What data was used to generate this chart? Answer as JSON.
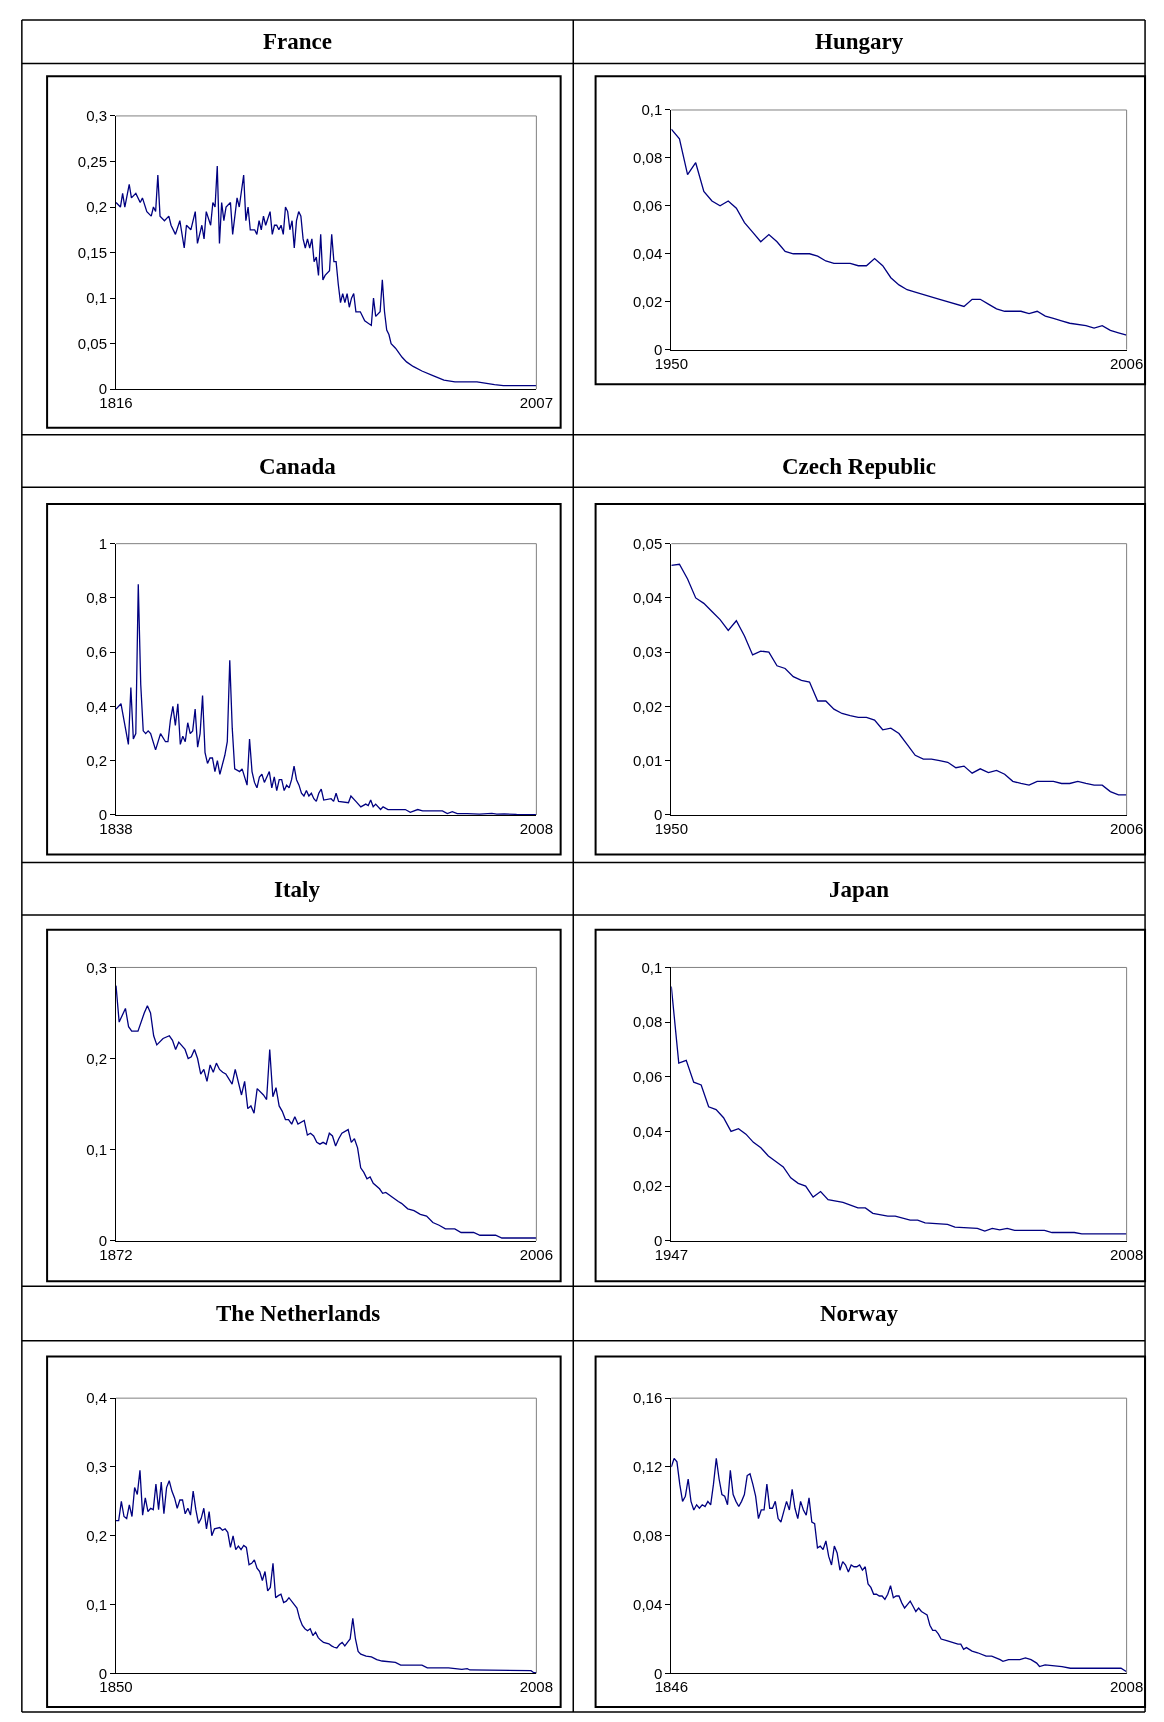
{
  "chart_data": [
    {
      "type": "line",
      "title": "France",
      "color": "#000080",
      "x": [
        1816,
        1818,
        1819,
        1820,
        1822,
        1823,
        1825,
        1827,
        1828,
        1830,
        1832,
        1833,
        1834,
        1835,
        1836,
        1838,
        1840,
        1841,
        1843,
        1845,
        1847,
        1848,
        1850,
        1852,
        1853,
        1855,
        1856,
        1857,
        1859,
        1860,
        1861,
        1862,
        1863,
        1864,
        1865,
        1866,
        1868,
        1869,
        1871,
        1872,
        1874,
        1875,
        1876,
        1877,
        1879,
        1880,
        1881,
        1882,
        1883,
        1884,
        1886,
        1887,
        1888,
        1889,
        1890,
        1891,
        1892,
        1893,
        1894,
        1895,
        1896,
        1897,
        1898,
        1899,
        1900,
        1901,
        1902,
        1903,
        1904,
        1905,
        1906,
        1907,
        1908,
        1909,
        1910,
        1911,
        1913,
        1914,
        1915,
        1916,
        1917,
        1918,
        1919,
        1920,
        1921,
        1922,
        1923,
        1924,
        1925,
        1927,
        1929,
        1932,
        1933,
        1934,
        1936,
        1937,
        1938,
        1939,
        1940,
        1941,
        1943,
        1946,
        1948,
        1951,
        1955,
        1960,
        1965,
        1970,
        1980,
        1988,
        1992,
        2007
      ],
      "values": [
        0.205,
        0.2,
        0.215,
        0.2,
        0.225,
        0.21,
        0.215,
        0.205,
        0.21,
        0.195,
        0.19,
        0.2,
        0.195,
        0.235,
        0.19,
        0.185,
        0.19,
        0.18,
        0.17,
        0.185,
        0.155,
        0.18,
        0.175,
        0.195,
        0.16,
        0.18,
        0.165,
        0.195,
        0.18,
        0.205,
        0.2,
        0.245,
        0.16,
        0.205,
        0.185,
        0.2,
        0.205,
        0.17,
        0.21,
        0.2,
        0.235,
        0.185,
        0.2,
        0.175,
        0.175,
        0.17,
        0.185,
        0.175,
        0.19,
        0.18,
        0.195,
        0.17,
        0.18,
        0.18,
        0.175,
        0.18,
        0.17,
        0.2,
        0.195,
        0.175,
        0.185,
        0.155,
        0.185,
        0.195,
        0.19,
        0.165,
        0.155,
        0.165,
        0.155,
        0.165,
        0.14,
        0.145,
        0.125,
        0.17,
        0.12,
        0.125,
        0.13,
        0.17,
        0.14,
        0.14,
        0.115,
        0.095,
        0.105,
        0.095,
        0.105,
        0.09,
        0.1,
        0.105,
        0.085,
        0.085,
        0.075,
        0.07,
        0.1,
        0.08,
        0.085,
        0.12,
        0.085,
        0.065,
        0.06,
        0.05,
        0.045,
        0.035,
        0.03,
        0.025,
        0.02,
        0.015,
        0.01,
        0.008,
        0.008,
        0.005,
        0.004,
        0.004
      ],
      "xlim": [
        1816,
        2007
      ],
      "xticks": [
        1816,
        2007
      ],
      "ylim": [
        0,
        0.3
      ],
      "yticks": [
        0,
        {
          "value": 0.05,
          "label": "0,05"
        },
        {
          "value": 0.1,
          "label": "0,1"
        },
        {
          "value": 0.15,
          "label": "0,15"
        },
        {
          "value": 0.2,
          "label": "0,2"
        },
        {
          "value": 0.25,
          "label": "0,25"
        },
        {
          "value": 0.3,
          "label": "0,3"
        }
      ]
    },
    {
      "type": "line",
      "title": "Hungary",
      "color": "#000080",
      "x": [
        1950,
        1951,
        1952,
        1953,
        1954,
        1955,
        1956,
        1957,
        1958,
        1959,
        1960,
        1961,
        1962,
        1963,
        1964,
        1965,
        1967,
        1968,
        1969,
        1970,
        1972,
        1973,
        1974,
        1975,
        1976,
        1977,
        1978,
        1979,
        1980,
        1983,
        1986,
        1987,
        1988,
        1989,
        1990,
        1991,
        1993,
        1994,
        1995,
        1996,
        1997,
        1998,
        1999,
        2001,
        2002,
        2003,
        2004,
        2005,
        2006
      ],
      "values": [
        0.092,
        0.088,
        0.073,
        0.078,
        0.066,
        0.062,
        0.06,
        0.062,
        0.059,
        0.053,
        0.049,
        0.045,
        0.048,
        0.045,
        0.041,
        0.04,
        0.04,
        0.039,
        0.037,
        0.036,
        0.036,
        0.035,
        0.035,
        0.038,
        0.035,
        0.03,
        0.027,
        0.025,
        0.024,
        0.021,
        0.018,
        0.021,
        0.021,
        0.019,
        0.017,
        0.016,
        0.016,
        0.015,
        0.016,
        0.014,
        0.013,
        0.012,
        0.011,
        0.01,
        0.009,
        0.01,
        0.008,
        0.007,
        0.006
      ],
      "xlim": [
        1950,
        2006
      ],
      "xticks": [
        1950,
        2006
      ],
      "ylim": [
        0,
        0.1
      ],
      "yticks": [
        0,
        {
          "value": 0.02,
          "label": "0,02"
        },
        {
          "value": 0.04,
          "label": "0,04"
        },
        {
          "value": 0.06,
          "label": "0,06"
        },
        {
          "value": 0.08,
          "label": "0,08"
        },
        {
          "value": 0.1,
          "label": "0,1"
        }
      ]
    },
    {
      "type": "line",
      "title": "Canada",
      "color": "#000080",
      "x": [
        1838,
        1840,
        1843,
        1844,
        1845,
        1846,
        1847,
        1848,
        1849,
        1850,
        1851,
        1852,
        1854,
        1856,
        1858,
        1859,
        1860,
        1861,
        1862,
        1863,
        1864,
        1865,
        1866,
        1867,
        1868,
        1869,
        1870,
        1871,
        1872,
        1873,
        1874,
        1875,
        1876,
        1877,
        1878,
        1879,
        1880,
        1882,
        1883,
        1884,
        1885,
        1886,
        1888,
        1889,
        1891,
        1892,
        1893,
        1894,
        1895,
        1896,
        1897,
        1898,
        1900,
        1901,
        1902,
        1903,
        1904,
        1905,
        1906,
        1907,
        1908,
        1909,
        1910,
        1911,
        1912,
        1913,
        1914,
        1915,
        1916,
        1917,
        1918,
        1919,
        1920,
        1921,
        1922,
        1925,
        1926,
        1927,
        1928,
        1932,
        1933,
        1935,
        1937,
        1939,
        1940,
        1941,
        1942,
        1943,
        1945,
        1946,
        1948,
        1955,
        1957,
        1960,
        1962,
        1970,
        1972,
        1974,
        1976,
        1980,
        1985,
        1990,
        1992,
        1995,
        2000,
        2008
      ],
      "values": [
        0.39,
        0.41,
        0.26,
        0.47,
        0.28,
        0.3,
        0.85,
        0.48,
        0.31,
        0.3,
        0.31,
        0.3,
        0.24,
        0.3,
        0.27,
        0.27,
        0.35,
        0.4,
        0.33,
        0.41,
        0.26,
        0.29,
        0.27,
        0.34,
        0.3,
        0.31,
        0.39,
        0.25,
        0.3,
        0.44,
        0.23,
        0.19,
        0.21,
        0.21,
        0.16,
        0.2,
        0.15,
        0.22,
        0.27,
        0.57,
        0.32,
        0.17,
        0.16,
        0.17,
        0.11,
        0.28,
        0.16,
        0.12,
        0.1,
        0.14,
        0.15,
        0.12,
        0.16,
        0.1,
        0.14,
        0.09,
        0.13,
        0.13,
        0.09,
        0.11,
        0.1,
        0.13,
        0.18,
        0.13,
        0.11,
        0.08,
        0.07,
        0.09,
        0.07,
        0.08,
        0.06,
        0.05,
        0.08,
        0.095,
        0.055,
        0.06,
        0.05,
        0.08,
        0.05,
        0.045,
        0.07,
        0.05,
        0.03,
        0.04,
        0.035,
        0.055,
        0.03,
        0.04,
        0.02,
        0.03,
        0.02,
        0.02,
        0.01,
        0.02,
        0.015,
        0.015,
        0.005,
        0.012,
        0.005,
        0.005,
        0.003,
        0.006,
        0.003,
        0.004,
        0.002,
        0.001
      ],
      "xlim": [
        1838,
        2008
      ],
      "xticks": [
        1838,
        2008
      ],
      "ylim": [
        0,
        1
      ],
      "yticks": [
        0,
        {
          "value": 0.2,
          "label": "0,2"
        },
        {
          "value": 0.4,
          "label": "0,4"
        },
        {
          "value": 0.6,
          "label": "0,6"
        },
        {
          "value": 0.8,
          "label": "0,8"
        },
        1
      ]
    },
    {
      "type": "line",
      "title": "Czech Republic",
      "color": "#000080",
      "x": [
        1950,
        1951,
        1952,
        1953,
        1954,
        1955,
        1956,
        1957,
        1958,
        1959,
        1960,
        1961,
        1962,
        1963,
        1964,
        1965,
        1966,
        1967,
        1968,
        1969,
        1970,
        1971,
        1972,
        1973,
        1974,
        1975,
        1976,
        1977,
        1978,
        1979,
        1980,
        1981,
        1982,
        1983,
        1984,
        1985,
        1986,
        1987,
        1988,
        1989,
        1990,
        1991,
        1992,
        1993,
        1994,
        1995,
        1996,
        1997,
        1998,
        1999,
        2000,
        2001,
        2002,
        2003,
        2004,
        2005,
        2006
      ],
      "values": [
        0.046,
        0.0462,
        0.0435,
        0.04,
        0.039,
        0.0375,
        0.036,
        0.034,
        0.0358,
        0.033,
        0.0295,
        0.0302,
        0.03,
        0.0275,
        0.027,
        0.0255,
        0.0248,
        0.0245,
        0.021,
        0.021,
        0.0195,
        0.0187,
        0.0183,
        0.018,
        0.018,
        0.0175,
        0.0157,
        0.016,
        0.015,
        0.013,
        0.011,
        0.0103,
        0.0103,
        0.01,
        0.0097,
        0.0087,
        0.009,
        0.0077,
        0.0085,
        0.0078,
        0.0082,
        0.0075,
        0.0062,
        0.0058,
        0.0055,
        0.0062,
        0.0062,
        0.0062,
        0.0058,
        0.0058,
        0.0062,
        0.0058,
        0.0055,
        0.0055,
        0.0043,
        0.0037,
        0.0037
      ],
      "xlim": [
        1950,
        2006
      ],
      "xticks": [
        1950,
        2006
      ],
      "ylim": [
        0,
        0.05
      ],
      "yticks": [
        0,
        {
          "value": 0.01,
          "label": "0,01"
        },
        {
          "value": 0.02,
          "label": "0,02"
        },
        {
          "value": 0.03,
          "label": "0,03"
        },
        {
          "value": 0.04,
          "label": "0,04"
        },
        {
          "value": 0.05,
          "label": "0,05"
        }
      ]
    },
    {
      "type": "line",
      "title": "Italy",
      "color": "#000080",
      "x": [
        1872,
        1873,
        1875,
        1876,
        1877,
        1879,
        1881,
        1882,
        1883,
        1884,
        1885,
        1887,
        1889,
        1890,
        1891,
        1892,
        1894,
        1895,
        1896,
        1897,
        1898,
        1899,
        1900,
        1901,
        1902,
        1903,
        1904,
        1905,
        1906,
        1907,
        1909,
        1910,
        1912,
        1913,
        1914,
        1915,
        1916,
        1917,
        1919,
        1920,
        1921,
        1922,
        1923,
        1924,
        1925,
        1926,
        1927,
        1928,
        1929,
        1930,
        1932,
        1933,
        1934,
        1935,
        1936,
        1937,
        1938,
        1939,
        1940,
        1941,
        1942,
        1943,
        1944,
        1946,
        1947,
        1948,
        1949,
        1950,
        1951,
        1952,
        1953,
        1954,
        1956,
        1957,
        1958,
        1960,
        1962,
        1963,
        1965,
        1967,
        1969,
        1971,
        1973,
        1975,
        1977,
        1980,
        1982,
        1986,
        1988,
        1993,
        1995,
        2006
      ],
      "values": [
        0.28,
        0.24,
        0.255,
        0.235,
        0.23,
        0.23,
        0.25,
        0.258,
        0.25,
        0.225,
        0.215,
        0.222,
        0.225,
        0.22,
        0.21,
        0.218,
        0.21,
        0.2,
        0.202,
        0.21,
        0.2,
        0.183,
        0.188,
        0.175,
        0.193,
        0.185,
        0.195,
        0.188,
        0.185,
        0.183,
        0.172,
        0.188,
        0.16,
        0.175,
        0.145,
        0.148,
        0.14,
        0.167,
        0.16,
        0.155,
        0.21,
        0.158,
        0.168,
        0.148,
        0.142,
        0.133,
        0.133,
        0.128,
        0.136,
        0.128,
        0.132,
        0.116,
        0.118,
        0.115,
        0.108,
        0.106,
        0.108,
        0.106,
        0.118,
        0.115,
        0.104,
        0.112,
        0.118,
        0.122,
        0.108,
        0.112,
        0.102,
        0.08,
        0.075,
        0.068,
        0.07,
        0.063,
        0.057,
        0.052,
        0.053,
        0.048,
        0.043,
        0.041,
        0.035,
        0.033,
        0.029,
        0.027,
        0.02,
        0.017,
        0.013,
        0.013,
        0.009,
        0.009,
        0.006,
        0.006,
        0.003,
        0.003
      ],
      "xlim": [
        1872,
        2006
      ],
      "xticks": [
        1872,
        2006
      ],
      "ylim": [
        0,
        0.3
      ],
      "yticks": [
        0,
        {
          "value": 0.1,
          "label": "0,1"
        },
        {
          "value": 0.2,
          "label": "0,2"
        },
        {
          "value": 0.3,
          "label": "0,3"
        }
      ]
    },
    {
      "type": "line",
      "title": "Japan",
      "color": "#000080",
      "x": [
        1947,
        1948,
        1949,
        1950,
        1951,
        1952,
        1953,
        1954,
        1955,
        1956,
        1957,
        1958,
        1959,
        1960,
        1961,
        1962,
        1963,
        1964,
        1965,
        1966,
        1967,
        1968,
        1970,
        1971,
        1972,
        1973,
        1974,
        1976,
        1977,
        1979,
        1980,
        1981,
        1984,
        1985,
        1988,
        1989,
        1990,
        1991,
        1992,
        1993,
        1997,
        1998,
        2001,
        2002,
        2008
      ],
      "values": [
        0.093,
        0.065,
        0.066,
        0.058,
        0.057,
        0.049,
        0.048,
        0.045,
        0.04,
        0.041,
        0.039,
        0.036,
        0.034,
        0.031,
        0.029,
        0.027,
        0.023,
        0.021,
        0.02,
        0.016,
        0.018,
        0.015,
        0.014,
        0.013,
        0.012,
        0.012,
        0.01,
        0.009,
        0.009,
        0.0075,
        0.0075,
        0.0065,
        0.006,
        0.005,
        0.0045,
        0.0035,
        0.0045,
        0.004,
        0.0045,
        0.0038,
        0.0038,
        0.003,
        0.003,
        0.0025,
        0.0025
      ],
      "xlim": [
        1947,
        2008
      ],
      "xticks": [
        1947,
        2008
      ],
      "ylim": [
        0,
        0.1
      ],
      "yticks": [
        0,
        {
          "value": 0.02,
          "label": "0,02"
        },
        {
          "value": 0.04,
          "label": "0,04"
        },
        {
          "value": 0.06,
          "label": "0,06"
        },
        {
          "value": 0.08,
          "label": "0,08"
        },
        {
          "value": 0.1,
          "label": "0,1"
        }
      ]
    },
    {
      "type": "line",
      "title": "The Netherlands",
      "color": "#000080",
      "x": [
        1850,
        1851,
        1852,
        1853,
        1854,
        1855,
        1856,
        1857,
        1858,
        1859,
        1860,
        1861,
        1862,
        1863,
        1864,
        1865,
        1866,
        1867,
        1868,
        1869,
        1870,
        1871,
        1872,
        1873,
        1874,
        1875,
        1876,
        1877,
        1878,
        1879,
        1880,
        1881,
        1882,
        1883,
        1884,
        1885,
        1886,
        1887,
        1889,
        1890,
        1891,
        1892,
        1893,
        1894,
        1895,
        1896,
        1897,
        1898,
        1899,
        1900,
        1901,
        1902,
        1903,
        1904,
        1905,
        1906,
        1907,
        1908,
        1909,
        1910,
        1911,
        1912,
        1913,
        1914,
        1915,
        1917,
        1918,
        1919,
        1920,
        1921,
        1922,
        1923,
        1924,
        1925,
        1926,
        1927,
        1928,
        1930,
        1931,
        1932,
        1933,
        1934,
        1935,
        1936,
        1937,
        1938,
        1939,
        1940,
        1941,
        1942,
        1944,
        1946,
        1948,
        1950,
        1955,
        1957,
        1965,
        1967,
        1975,
        1980,
        1982,
        1983,
        2006,
        2007,
        2008
      ],
      "values": [
        0.222,
        0.222,
        0.25,
        0.228,
        0.225,
        0.245,
        0.228,
        0.27,
        0.26,
        0.295,
        0.23,
        0.255,
        0.235,
        0.24,
        0.238,
        0.275,
        0.238,
        0.278,
        0.232,
        0.27,
        0.28,
        0.265,
        0.255,
        0.24,
        0.252,
        0.252,
        0.232,
        0.24,
        0.23,
        0.265,
        0.238,
        0.218,
        0.225,
        0.24,
        0.21,
        0.235,
        0.2,
        0.21,
        0.212,
        0.208,
        0.21,
        0.205,
        0.183,
        0.2,
        0.18,
        0.185,
        0.18,
        0.186,
        0.183,
        0.158,
        0.16,
        0.165,
        0.153,
        0.148,
        0.135,
        0.148,
        0.12,
        0.125,
        0.16,
        0.11,
        0.113,
        0.115,
        0.103,
        0.105,
        0.11,
        0.1,
        0.095,
        0.08,
        0.07,
        0.065,
        0.062,
        0.065,
        0.055,
        0.06,
        0.052,
        0.048,
        0.045,
        0.043,
        0.04,
        0.038,
        0.037,
        0.042,
        0.045,
        0.04,
        0.045,
        0.05,
        0.08,
        0.05,
        0.032,
        0.028,
        0.025,
        0.024,
        0.02,
        0.018,
        0.016,
        0.012,
        0.012,
        0.008,
        0.008,
        0.006,
        0.007,
        0.005,
        0.004,
        0.001,
        0.001
      ],
      "xlim": [
        1850,
        2008
      ],
      "xticks": [
        1850,
        2008
      ],
      "ylim": [
        0,
        0.4
      ],
      "yticks": [
        0,
        {
          "value": 0.1,
          "label": "0,1"
        },
        {
          "value": 0.2,
          "label": "0,2"
        },
        {
          "value": 0.3,
          "label": "0,3"
        },
        {
          "value": 0.4,
          "label": "0,4"
        }
      ]
    },
    {
      "type": "line",
      "title": "Norway",
      "color": "#000080",
      "x": [
        1846,
        1847,
        1848,
        1849,
        1850,
        1851,
        1852,
        1853,
        1854,
        1855,
        1856,
        1857,
        1858,
        1859,
        1860,
        1861,
        1862,
        1863,
        1864,
        1865,
        1866,
        1867,
        1868,
        1869,
        1870,
        1871,
        1872,
        1873,
        1874,
        1875,
        1876,
        1877,
        1878,
        1879,
        1880,
        1881,
        1882,
        1883,
        1884,
        1885,
        1886,
        1887,
        1888,
        1889,
        1890,
        1891,
        1892,
        1893,
        1894,
        1895,
        1896,
        1897,
        1898,
        1899,
        1900,
        1901,
        1902,
        1903,
        1904,
        1905,
        1906,
        1907,
        1908,
        1909,
        1910,
        1911,
        1912,
        1913,
        1914,
        1915,
        1916,
        1917,
        1918,
        1919,
        1920,
        1921,
        1922,
        1923,
        1924,
        1925,
        1926,
        1927,
        1928,
        1929,
        1930,
        1931,
        1932,
        1933,
        1934,
        1935,
        1936,
        1937,
        1938,
        1939,
        1940,
        1941,
        1942,
        1944,
        1946,
        1948,
        1949,
        1950,
        1951,
        1953,
        1955,
        1958,
        1960,
        1963,
        1964,
        1966,
        1970,
        1972,
        1974,
        1976,
        1977,
        1979,
        1985,
        1988,
        2006,
        2008
      ],
      "values": [
        0.12,
        0.125,
        0.123,
        0.11,
        0.1,
        0.103,
        0.113,
        0.1,
        0.095,
        0.098,
        0.096,
        0.098,
        0.097,
        0.1,
        0.098,
        0.11,
        0.125,
        0.113,
        0.104,
        0.103,
        0.098,
        0.118,
        0.104,
        0.1,
        0.097,
        0.1,
        0.104,
        0.115,
        0.116,
        0.11,
        0.103,
        0.09,
        0.095,
        0.095,
        0.11,
        0.096,
        0.096,
        0.1,
        0.09,
        0.088,
        0.094,
        0.1,
        0.095,
        0.107,
        0.096,
        0.09,
        0.1,
        0.095,
        0.092,
        0.102,
        0.088,
        0.087,
        0.073,
        0.074,
        0.072,
        0.077,
        0.068,
        0.063,
        0.074,
        0.07,
        0.06,
        0.065,
        0.063,
        0.059,
        0.063,
        0.062,
        0.062,
        0.063,
        0.06,
        0.062,
        0.052,
        0.05,
        0.046,
        0.046,
        0.045,
        0.045,
        0.043,
        0.046,
        0.051,
        0.044,
        0.045,
        0.045,
        0.041,
        0.038,
        0.04,
        0.042,
        0.039,
        0.036,
        0.038,
        0.036,
        0.035,
        0.034,
        0.028,
        0.025,
        0.025,
        0.023,
        0.02,
        0.019,
        0.018,
        0.017,
        0.017,
        0.014,
        0.015,
        0.013,
        0.012,
        0.01,
        0.01,
        0.008,
        0.007,
        0.008,
        0.008,
        0.009,
        0.008,
        0.006,
        0.004,
        0.005,
        0.004,
        0.003,
        0.003,
        0.001
      ],
      "xlim": [
        1846,
        2008
      ],
      "xticks": [
        1846,
        2008
      ],
      "ylim": [
        0,
        0.16
      ],
      "yticks": [
        0,
        {
          "value": 0.04,
          "label": "0,04"
        },
        {
          "value": 0.08,
          "label": "0,08"
        },
        {
          "value": 0.12,
          "label": "0,12"
        },
        {
          "value": 0.16,
          "label": "0,16"
        }
      ]
    }
  ]
}
